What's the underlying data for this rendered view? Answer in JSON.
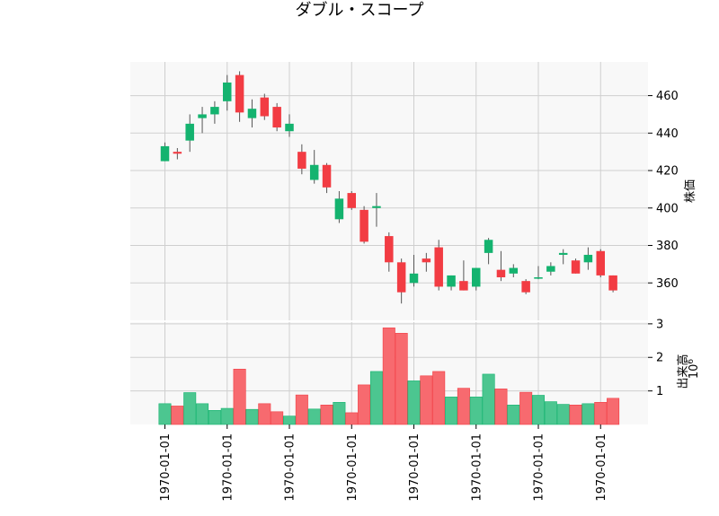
{
  "chart_data": {
    "type": "candlestick",
    "title": "ダブル・スコープ",
    "price_panel": {
      "ylabel": "株価",
      "ylim": [
        340,
        478
      ],
      "yticks": [
        360,
        380,
        400,
        420,
        440,
        460
      ],
      "axis_side": "right",
      "grid": true
    },
    "volume_panel": {
      "ylabel": "出来高",
      "scale_label": "10",
      "scale_exponent": "6",
      "ylim": [
        0,
        3.05
      ],
      "yticks": [
        1,
        2,
        3
      ],
      "axis_side": "right",
      "grid": true
    },
    "x_tick_labels": [
      "1970-01-01",
      "1970-01-01",
      "1970-01-01",
      "1970-01-01",
      "1970-01-01",
      "1970-01-01",
      "1970-01-01",
      "1970-01-01"
    ],
    "x_tick_indices": [
      0,
      5,
      10,
      15,
      20,
      25,
      30,
      35
    ],
    "colors": {
      "up": "#14b36f",
      "down": "#f23c43",
      "up_volume": "#4cc690",
      "down_volume": "#f76a6f",
      "wick": "#555555",
      "panel_bg": "#f8f8f8"
    },
    "candles": [
      {
        "open": 425,
        "high": 435,
        "low": 425,
        "close": 433,
        "volume": 0.62
      },
      {
        "open": 430,
        "high": 432,
        "low": 426,
        "close": 429,
        "volume": 0.55
      },
      {
        "open": 436,
        "high": 450,
        "low": 430,
        "close": 445,
        "volume": 0.95
      },
      {
        "open": 448,
        "high": 454,
        "low": 440,
        "close": 450,
        "volume": 0.62
      },
      {
        "open": 450,
        "high": 457,
        "low": 445,
        "close": 454,
        "volume": 0.42
      },
      {
        "open": 457,
        "high": 471,
        "low": 452,
        "close": 467,
        "volume": 0.48
      },
      {
        "open": 471,
        "high": 473,
        "low": 446,
        "close": 451,
        "volume": 1.65
      },
      {
        "open": 448,
        "high": 458,
        "low": 443,
        "close": 453,
        "volume": 0.45
      },
      {
        "open": 459,
        "high": 461,
        "low": 447,
        "close": 449,
        "volume": 0.62
      },
      {
        "open": 454,
        "high": 456,
        "low": 441,
        "close": 443,
        "volume": 0.38
      },
      {
        "open": 441,
        "high": 450,
        "low": 438,
        "close": 445,
        "volume": 0.25
      },
      {
        "open": 430,
        "high": 434,
        "low": 418,
        "close": 421,
        "volume": 0.88
      },
      {
        "open": 415,
        "high": 431,
        "low": 413,
        "close": 423,
        "volume": 0.46
      },
      {
        "open": 423,
        "high": 424,
        "low": 408,
        "close": 411,
        "volume": 0.58
      },
      {
        "open": 394,
        "high": 409,
        "low": 392,
        "close": 405,
        "volume": 0.66
      },
      {
        "open": 408,
        "high": 409,
        "low": 399,
        "close": 400,
        "volume": 0.35
      },
      {
        "open": 399,
        "high": 401,
        "low": 381,
        "close": 382,
        "volume": 1.18
      },
      {
        "open": 400,
        "high": 408,
        "low": 390,
        "close": 401,
        "volume": 1.58
      },
      {
        "open": 385,
        "high": 387,
        "low": 366,
        "close": 371,
        "volume": 2.88
      },
      {
        "open": 371,
        "high": 373,
        "low": 349,
        "close": 355,
        "volume": 2.72
      },
      {
        "open": 360,
        "high": 375,
        "low": 358,
        "close": 365,
        "volume": 1.3
      },
      {
        "open": 373,
        "high": 376,
        "low": 366,
        "close": 371,
        "volume": 1.45
      },
      {
        "open": 379,
        "high": 383,
        "low": 356,
        "close": 358,
        "volume": 1.58
      },
      {
        "open": 358,
        "high": 364,
        "low": 356,
        "close": 364,
        "volume": 0.82
      },
      {
        "open": 361,
        "high": 372,
        "low": 356,
        "close": 356,
        "volume": 1.08
      },
      {
        "open": 358,
        "high": 368,
        "low": 356,
        "close": 368,
        "volume": 0.82
      },
      {
        "open": 376,
        "high": 384,
        "low": 370,
        "close": 383,
        "volume": 1.5
      },
      {
        "open": 367,
        "high": 377,
        "low": 361,
        "close": 363,
        "volume": 1.06
      },
      {
        "open": 365,
        "high": 370,
        "low": 363,
        "close": 368,
        "volume": 0.58
      },
      {
        "open": 361,
        "high": 362,
        "low": 354,
        "close": 355,
        "volume": 0.96
      },
      {
        "open": 363,
        "high": 369,
        "low": 362,
        "close": 363,
        "volume": 0.87
      },
      {
        "open": 366,
        "high": 371,
        "low": 364,
        "close": 369,
        "volume": 0.68
      },
      {
        "open": 375,
        "high": 378,
        "low": 370,
        "close": 376,
        "volume": 0.6
      },
      {
        "open": 372,
        "high": 373,
        "low": 365,
        "close": 365,
        "volume": 0.58
      },
      {
        "open": 371,
        "high": 379,
        "low": 367,
        "close": 375,
        "volume": 0.62
      },
      {
        "open": 377,
        "high": 378,
        "low": 363,
        "close": 364,
        "volume": 0.66
      },
      {
        "open": 364,
        "high": 364,
        "low": 355,
        "close": 356,
        "volume": 0.78
      }
    ]
  }
}
